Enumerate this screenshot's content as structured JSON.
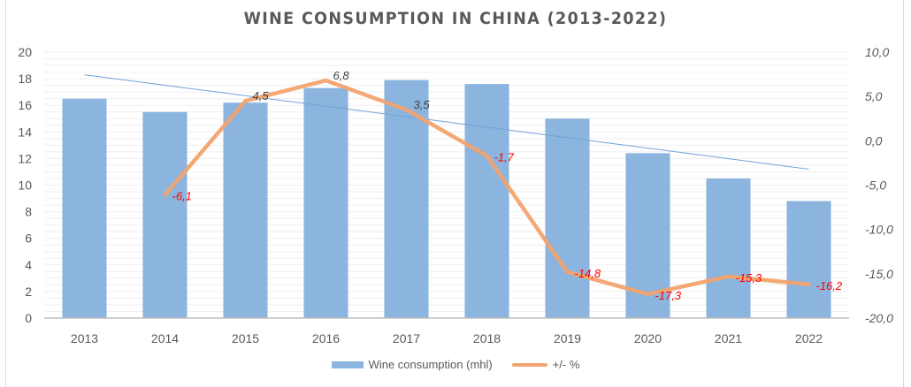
{
  "chart_data": {
    "type": "bar",
    "title": "WINE CONSUMPTION IN CHINA (2013-2022)",
    "xlabel": "",
    "ylabel": "",
    "categories": [
      "2013",
      "2014",
      "2015",
      "2016",
      "2017",
      "2018",
      "2019",
      "2020",
      "2021",
      "2022"
    ],
    "series": [
      {
        "name": "Wine consumption (mhl)",
        "type": "bar",
        "axis": "left",
        "color": "#8bb4de",
        "values": [
          16.5,
          15.5,
          16.2,
          17.3,
          17.9,
          17.6,
          15.0,
          12.4,
          10.5,
          8.8
        ]
      },
      {
        "name": "+/- %",
        "type": "line",
        "axis": "right",
        "color": "#f2a36e",
        "values": [
          null,
          -6.1,
          4.5,
          6.8,
          3.5,
          -1.7,
          -14.8,
          -17.3,
          -15.3,
          -16.2
        ],
        "labels": [
          null,
          "-6,1",
          "4,5",
          "6,8",
          "3,5",
          "-1,7",
          "-14,8",
          "-17,3",
          "-15,3",
          "-16,2"
        ]
      },
      {
        "name": "Linear trend (Wine consumption)",
        "type": "trendline",
        "axis": "left",
        "color": "#6fa3d8",
        "start": 18.3,
        "end": 11.2
      }
    ],
    "left_axis": {
      "ylim": [
        0,
        20
      ],
      "ticks": [
        "0",
        "2",
        "4",
        "6",
        "8",
        "10",
        "12",
        "14",
        "16",
        "18",
        "20"
      ]
    },
    "right_axis": {
      "ylim": [
        -20,
        10
      ],
      "ticks": [
        "-20,0",
        "-15,0",
        "-10,0",
        "-5,0",
        "0,0",
        "5,0",
        "10,0"
      ]
    },
    "label_colors": {
      "positive": "#404040",
      "negative": "#ff0000"
    },
    "grid": true,
    "legend": {
      "position": "bottom",
      "entries": [
        "Wine consumption (mhl)",
        "+/- %"
      ]
    }
  }
}
